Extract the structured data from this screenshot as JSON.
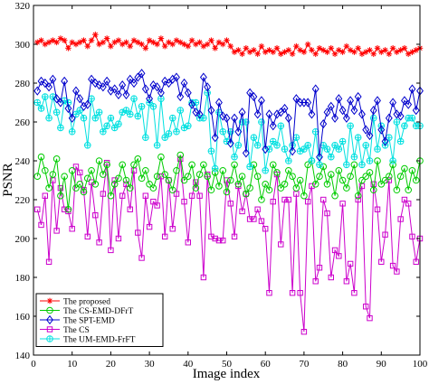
{
  "chart_data": {
    "type": "line",
    "xlabel": "Image index",
    "ylabel": "PSNR",
    "xlim": [
      0,
      100
    ],
    "ylim": [
      140,
      320
    ],
    "xticks": [
      0,
      10,
      20,
      30,
      40,
      50,
      60,
      70,
      80,
      90,
      100
    ],
    "yticks": [
      140,
      160,
      180,
      200,
      220,
      240,
      260,
      280,
      300,
      320
    ],
    "grid": false,
    "legend_position": "bottom-left",
    "x": [
      1,
      2,
      3,
      4,
      5,
      6,
      7,
      8,
      9,
      10,
      11,
      12,
      13,
      14,
      15,
      16,
      17,
      18,
      19,
      20,
      21,
      22,
      23,
      24,
      25,
      26,
      27,
      28,
      29,
      30,
      31,
      32,
      33,
      34,
      35,
      36,
      37,
      38,
      39,
      40,
      41,
      42,
      43,
      44,
      45,
      46,
      47,
      48,
      49,
      50,
      51,
      52,
      53,
      54,
      55,
      56,
      57,
      58,
      59,
      60,
      61,
      62,
      63,
      64,
      65,
      66,
      67,
      68,
      69,
      70,
      71,
      72,
      73,
      74,
      75,
      76,
      77,
      78,
      79,
      80,
      81,
      82,
      83,
      84,
      85,
      86,
      87,
      88,
      89,
      90,
      91,
      92,
      93,
      94,
      95,
      96,
      97,
      98,
      99,
      100
    ],
    "series": [
      {
        "name": "The proposed",
        "color": "#ff0000",
        "marker": "star",
        "values": [
          301,
          302,
          300,
          301,
          302,
          301,
          303,
          302,
          298,
          301,
          300,
          301,
          302,
          299,
          302,
          305,
          300,
          301,
          303,
          299,
          301,
          302,
          300,
          301,
          299,
          302,
          301,
          300,
          298,
          302,
          301,
          300,
          303,
          299,
          301,
          300,
          302,
          301,
          300,
          299,
          302,
          300,
          301,
          299,
          300,
          302,
          298,
          301,
          300,
          302,
          299,
          296,
          297,
          295,
          298,
          296,
          297,
          295,
          299,
          296,
          297,
          296,
          298,
          295,
          296,
          297,
          295,
          299,
          297,
          296,
          300,
          297,
          295,
          298,
          297,
          296,
          298,
          295,
          297,
          296,
          299,
          297,
          296,
          298,
          295,
          296,
          297,
          295,
          298,
          296,
          297,
          295,
          298,
          296,
          297,
          298,
          295,
          296,
          297,
          298
        ]
      },
      {
        "name": "The CS-EMD-DFrT",
        "color": "#00cc00",
        "marker": "circle",
        "values": [
          232,
          242,
          235,
          226,
          233,
          241,
          222,
          232,
          215,
          235,
          226,
          228,
          224,
          231,
          235,
          228,
          240,
          233,
          238,
          222,
          228,
          231,
          238,
          230,
          226,
          238,
          241,
          231,
          235,
          228,
          226,
          232,
          242,
          233,
          230,
          225,
          235,
          243,
          230,
          232,
          238,
          226,
          233,
          238,
          232,
          225,
          234,
          227,
          235,
          224,
          230,
          238,
          228,
          232,
          223,
          226,
          238,
          232,
          220,
          228,
          225,
          238,
          234,
          226,
          228,
          235,
          232,
          226,
          230,
          222,
          238,
          240,
          228,
          232,
          237,
          228,
          233,
          222,
          235,
          230,
          226,
          232,
          238,
          222,
          230,
          232,
          234,
          225,
          240,
          228,
          230,
          232,
          238,
          225,
          232,
          236,
          225,
          235,
          230,
          240
        ]
      },
      {
        "name": "The SPT-EMD",
        "color": "#0000cc",
        "marker": "diamond",
        "values": [
          276,
          281,
          280,
          278,
          282,
          272,
          270,
          281,
          267,
          262,
          276,
          272,
          268,
          269,
          282,
          280,
          279,
          278,
          281,
          276,
          277,
          274,
          279,
          274,
          282,
          280,
          283,
          285,
          277,
          272,
          279,
          278,
          275,
          281,
          280,
          282,
          283,
          273,
          280,
          275,
          269,
          265,
          264,
          283,
          278,
          266,
          252,
          270,
          263,
          262,
          249,
          262,
          255,
          265,
          244,
          275,
          273,
          264,
          271,
          246,
          264,
          258,
          264,
          265,
          267,
          262,
          245,
          272,
          270,
          270,
          270,
          264,
          277,
          242,
          259,
          265,
          268,
          262,
          272,
          266,
          262,
          271,
          266,
          273,
          264,
          256,
          253,
          266,
          271,
          256,
          250,
          262,
          270,
          264,
          263,
          271,
          269,
          277,
          266,
          276
        ]
      },
      {
        "name": "The CS",
        "color": "#cc00cc",
        "marker": "square",
        "values": [
          215,
          207,
          222,
          188,
          230,
          204,
          226,
          215,
          214,
          205,
          237,
          234,
          225,
          201,
          229,
          212,
          198,
          223,
          239,
          194,
          230,
          200,
          222,
          228,
          215,
          235,
          203,
          190,
          222,
          206,
          219,
          217,
          232,
          201,
          230,
          205,
          223,
          241,
          219,
          198,
          222,
          229,
          222,
          180,
          233,
          201,
          200,
          199,
          199,
          230,
          218,
          201,
          227,
          214,
          223,
          210,
          210,
          215,
          209,
          205,
          172,
          219,
          233,
          197,
          220,
          220,
          172,
          223,
          172,
          152,
          219,
          227,
          178,
          185,
          220,
          213,
          180,
          194,
          191,
          218,
          178,
          187,
          172,
          220,
          227,
          165,
          159,
          228,
          215,
          188,
          202,
          230,
          186,
          183,
          210,
          220,
          218,
          201,
          188,
          200
        ]
      },
      {
        "name": "The UM-EMD-FrFT",
        "color": "#00e0e0",
        "marker": "circle-plus",
        "values": [
          270,
          267,
          273,
          262,
          273,
          265,
          257,
          271,
          270,
          255,
          264,
          266,
          262,
          248,
          272,
          262,
          265,
          255,
          258,
          262,
          257,
          259,
          265,
          266,
          264,
          272,
          263,
          268,
          252,
          270,
          268,
          248,
          272,
          252,
          254,
          262,
          255,
          266,
          257,
          258,
          270,
          270,
          262,
          262,
          275,
          245,
          236,
          265,
          255,
          250,
          255,
          242,
          248,
          260,
          260,
          237,
          252,
          248,
          260,
          235,
          246,
          250,
          248,
          258,
          246,
          240,
          248,
          252,
          245,
          246,
          248,
          240,
          255,
          238,
          248,
          246,
          242,
          248,
          246,
          250,
          238,
          258,
          242,
          252,
          238,
          248,
          240,
          262,
          246,
          258,
          248,
          252,
          240,
          260,
          250,
          258,
          262,
          262,
          258,
          258
        ]
      }
    ]
  }
}
